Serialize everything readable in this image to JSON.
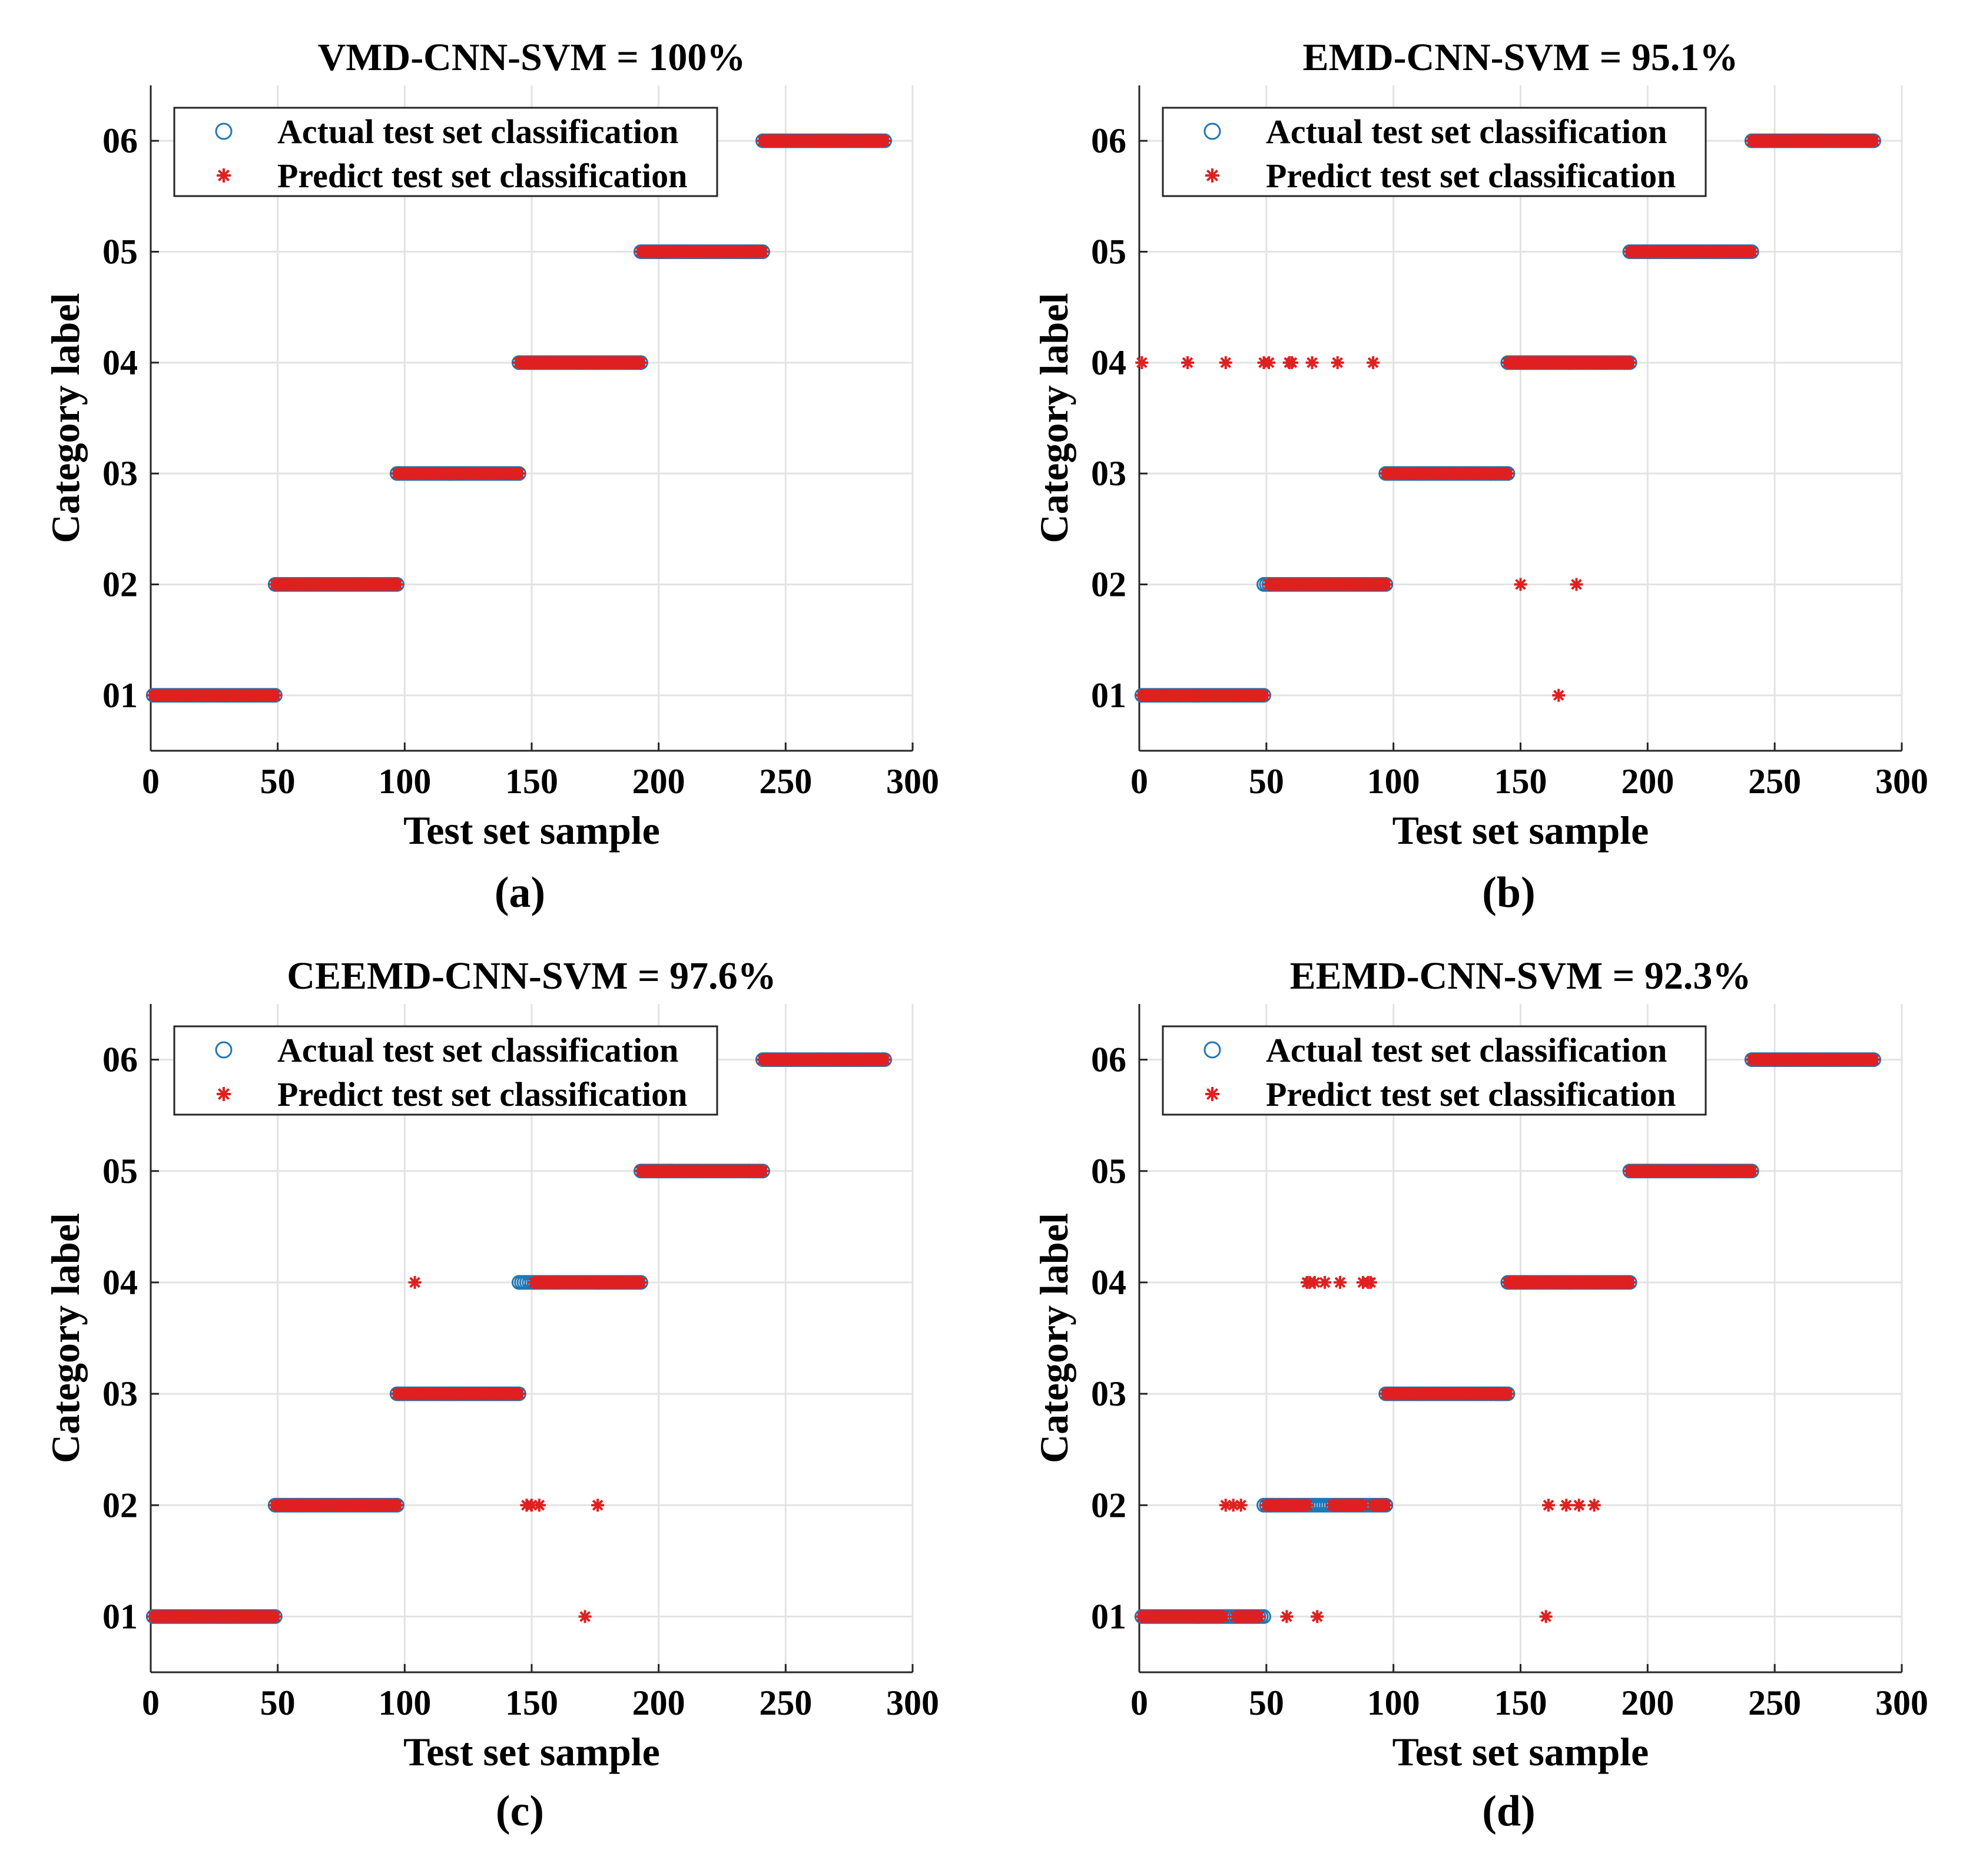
{
  "chart_data": [
    {
      "type": "scatter",
      "panel": "(a)",
      "title": "VMD-CNN-SVM = 100%",
      "xlabel": "Test set sample",
      "ylabel": "Category label",
      "xlim": [
        0,
        300
      ],
      "ylim": [
        0.5,
        6.5
      ],
      "xticks": [
        "0",
        "50",
        "100",
        "150",
        "200",
        "250",
        "300"
      ],
      "yticks": [
        "01",
        "02",
        "03",
        "04",
        "05",
        "06"
      ],
      "legend": [
        "Actual test set classification",
        "Predict test set classification"
      ],
      "legend_position": "top-left",
      "series": [
        {
          "name": "Actual test set classification",
          "marker": "circle",
          "color": "#1f77b4",
          "segments": [
            [
              1,
              49,
              1
            ],
            [
              49,
              97,
              2
            ],
            [
              97,
              145,
              3
            ],
            [
              145,
              193,
              4
            ],
            [
              193,
              241,
              5
            ],
            [
              241,
              289,
              6
            ]
          ]
        },
        {
          "name": "Predict test set classification",
          "marker": "asterisk",
          "color": "#e02020",
          "segments": [
            [
              1,
              49,
              1
            ],
            [
              49,
              97,
              2
            ],
            [
              97,
              145,
              3
            ],
            [
              145,
              193,
              4
            ],
            [
              193,
              241,
              5
            ],
            [
              241,
              289,
              6
            ]
          ],
          "outliers": []
        }
      ]
    },
    {
      "type": "scatter",
      "panel": "(b)",
      "title": "EMD-CNN-SVM = 95.1%",
      "xlabel": "Test set sample",
      "ylabel": "Category label",
      "xlim": [
        0,
        300
      ],
      "ylim": [
        0.5,
        6.5
      ],
      "xticks": [
        "0",
        "50",
        "100",
        "150",
        "200",
        "250",
        "300"
      ],
      "yticks": [
        "01",
        "02",
        "03",
        "04",
        "05",
        "06"
      ],
      "legend": [
        "Actual test set classification",
        "Predict test set classification"
      ],
      "legend_position": "top-left",
      "series": [
        {
          "name": "Actual test set classification",
          "marker": "circle",
          "color": "#1f77b4",
          "segments": [
            [
              1,
              49,
              1
            ],
            [
              49,
              97,
              2
            ],
            [
              97,
              145,
              3
            ],
            [
              145,
              193,
              4
            ],
            [
              193,
              241,
              5
            ],
            [
              241,
              289,
              6
            ]
          ]
        },
        {
          "name": "Predict test set classification",
          "marker": "asterisk",
          "color": "#e02020",
          "segments": [
            [
              1,
              49,
              1
            ],
            [
              51,
              97,
              2
            ],
            [
              97,
              145,
              3
            ],
            [
              145,
              193,
              4
            ],
            [
              193,
              241,
              5
            ],
            [
              241,
              289,
              6
            ]
          ],
          "outliers": [
            [
              1,
              4
            ],
            [
              19,
              4
            ],
            [
              34,
              4
            ],
            [
              49,
              4
            ],
            [
              51,
              4
            ],
            [
              59,
              4
            ],
            [
              60,
              4
            ],
            [
              68,
              4
            ],
            [
              78,
              4
            ],
            [
              92,
              4
            ],
            [
              150,
              2
            ],
            [
              172,
              2
            ],
            [
              165,
              1
            ]
          ]
        }
      ]
    },
    {
      "type": "scatter",
      "panel": "(c)",
      "title": "CEEMD-CNN-SVM = 97.6%",
      "xlabel": "Test set sample",
      "ylabel": "Category label",
      "xlim": [
        0,
        300
      ],
      "ylim": [
        0.5,
        6.5
      ],
      "xticks": [
        "0",
        "50",
        "100",
        "150",
        "200",
        "250",
        "300"
      ],
      "yticks": [
        "01",
        "02",
        "03",
        "04",
        "05",
        "06"
      ],
      "legend": [
        "Actual test set classification",
        "Predict test set classification"
      ],
      "legend_position": "top-left",
      "series": [
        {
          "name": "Actual test set classification",
          "marker": "circle",
          "color": "#1f77b4",
          "segments": [
            [
              1,
              49,
              1
            ],
            [
              49,
              97,
              2
            ],
            [
              97,
              145,
              3
            ],
            [
              145,
              193,
              4
            ],
            [
              193,
              241,
              5
            ],
            [
              241,
              289,
              6
            ]
          ]
        },
        {
          "name": "Predict test set classification",
          "marker": "asterisk",
          "color": "#e02020",
          "segments": [
            [
              1,
              49,
              1
            ],
            [
              49,
              97,
              2
            ],
            [
              97,
              145,
              3
            ],
            [
              151,
              193,
              4
            ],
            [
              193,
              241,
              5
            ],
            [
              241,
              289,
              6
            ]
          ],
          "outliers": [
            [
              104,
              4
            ],
            [
              148,
              2
            ],
            [
              150,
              2
            ],
            [
              153,
              2
            ],
            [
              176,
              2
            ],
            [
              171,
              1
            ]
          ]
        }
      ]
    },
    {
      "type": "scatter",
      "panel": "(d)",
      "title": "EEMD-CNN-SVM =  92.3%",
      "xlabel": "Test set sample",
      "ylabel": "Category label",
      "xlim": [
        0,
        300
      ],
      "ylim": [
        0.5,
        6.5
      ],
      "xticks": [
        "0",
        "50",
        "100",
        "150",
        "200",
        "250",
        "300"
      ],
      "yticks": [
        "01",
        "02",
        "03",
        "04",
        "05",
        "06"
      ],
      "legend": [
        "Actual test set classification",
        "Predict test set classification"
      ],
      "legend_position": "top-left",
      "series": [
        {
          "name": "Actual test set classification",
          "marker": "circle",
          "color": "#1f77b4",
          "segments": [
            [
              1,
              49,
              1
            ],
            [
              49,
              97,
              2
            ],
            [
              97,
              145,
              3
            ],
            [
              145,
              193,
              4
            ],
            [
              193,
              241,
              5
            ],
            [
              241,
              289,
              6
            ]
          ]
        },
        {
          "name": "Predict test set classification",
          "marker": "asterisk",
          "color": "#e02020",
          "segments": [
            [
              1,
              33,
              1
            ],
            [
              38,
              47,
              1
            ],
            [
              50,
              66,
              2
            ],
            [
              76,
              88,
              2
            ],
            [
              92,
              97,
              2
            ],
            [
              97,
              145,
              3
            ],
            [
              145,
              193,
              4
            ],
            [
              193,
              241,
              5
            ],
            [
              241,
              289,
              6
            ]
          ],
          "outliers": [
            [
              58,
              1
            ],
            [
              70,
              1
            ],
            [
              160,
              1
            ],
            [
              34,
              2
            ],
            [
              37,
              2
            ],
            [
              40,
              2
            ],
            [
              161,
              2
            ],
            [
              168,
              2
            ],
            [
              173,
              2
            ],
            [
              179,
              2
            ],
            [
              66,
              4
            ],
            [
              67,
              4
            ],
            [
              69,
              4
            ],
            [
              73,
              4
            ],
            [
              79,
              4
            ],
            [
              88,
              4
            ],
            [
              90,
              4
            ],
            [
              91,
              4
            ]
          ]
        }
      ]
    }
  ]
}
